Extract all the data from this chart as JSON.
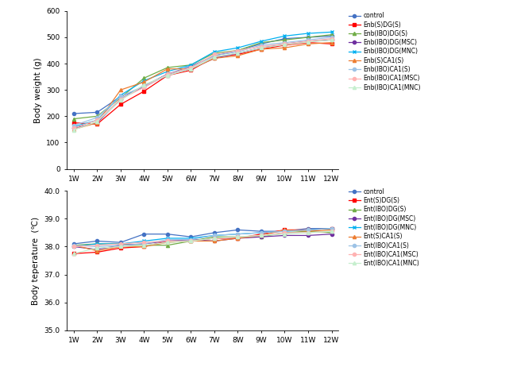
{
  "weeks": [
    "1W",
    "2W",
    "3W",
    "4W",
    "5W",
    "6W",
    "7W",
    "8W",
    "9W",
    "10W",
    "11W",
    "12W"
  ],
  "top_legend_labels": [
    "control",
    "Enb(S)DG(S)",
    "Enb(IBO)DG(S)",
    "Enb(IBO)DG(MSC)",
    "Enb(IBO)DG(MNC)",
    "Enb(S)CA1(S)",
    "Enb(IBO)CA1(S)",
    "Enb(IBO)CA1(MSC)",
    "Enb(IBO)CA1(MNC)"
  ],
  "bot_legend_labels": [
    "control",
    "Ent(S)DG(S)",
    "Ent(IBO)DG(S)",
    "Ent(IBO)DG(MSC)",
    "Ent(IBO)DG(MNC)",
    "Ent(S)CA1(S)",
    "Ent(IBO)CA1(S)",
    "Ent(IBO)CA1(MSC)",
    "Ent(IBO)CA1(MNC)"
  ],
  "series_colors": [
    "#4472C4",
    "#FF0000",
    "#70AD47",
    "#7030A0",
    "#00B0F0",
    "#ED7D31",
    "#9DC3E6",
    "#FFB3B3",
    "#C6EFCE"
  ],
  "series_markers": [
    "o",
    "s",
    "^",
    "o",
    "x",
    "^",
    "o",
    "o",
    "^"
  ],
  "weight_data": [
    [
      210,
      215,
      275,
      310,
      360,
      390,
      430,
      450,
      475,
      495,
      500,
      505
    ],
    [
      175,
      170,
      245,
      295,
      355,
      375,
      425,
      435,
      455,
      470,
      480,
      475
    ],
    [
      190,
      200,
      270,
      345,
      385,
      395,
      440,
      450,
      480,
      490,
      500,
      510
    ],
    [
      155,
      175,
      265,
      315,
      360,
      380,
      420,
      440,
      460,
      475,
      485,
      490
    ],
    [
      160,
      185,
      280,
      335,
      370,
      395,
      445,
      460,
      485,
      505,
      515,
      520
    ],
    [
      150,
      175,
      300,
      330,
      380,
      380,
      420,
      430,
      455,
      460,
      475,
      480
    ],
    [
      165,
      195,
      275,
      315,
      355,
      385,
      430,
      445,
      470,
      480,
      490,
      500
    ],
    [
      155,
      185,
      265,
      310,
      360,
      385,
      435,
      450,
      465,
      475,
      485,
      495
    ],
    [
      148,
      180,
      260,
      320,
      355,
      380,
      425,
      440,
      460,
      472,
      482,
      490
    ]
  ],
  "temp_data": [
    [
      38.1,
      38.2,
      38.15,
      38.45,
      38.45,
      38.35,
      38.5,
      38.6,
      38.55,
      38.55,
      38.65,
      38.65
    ],
    [
      37.75,
      37.8,
      37.95,
      38.0,
      38.2,
      38.2,
      38.3,
      38.3,
      38.45,
      38.6,
      38.6,
      38.65
    ],
    [
      38.05,
      38.1,
      38.1,
      38.05,
      38.05,
      38.2,
      38.35,
      38.35,
      38.35,
      38.5,
      38.55,
      38.5
    ],
    [
      38.0,
      37.9,
      38.05,
      38.1,
      38.2,
      38.25,
      38.2,
      38.3,
      38.35,
      38.4,
      38.4,
      38.45
    ],
    [
      38.0,
      38.1,
      38.1,
      38.2,
      38.3,
      38.3,
      38.4,
      38.45,
      38.5,
      38.55,
      38.6,
      38.65
    ],
    [
      38.05,
      37.85,
      38.0,
      38.0,
      38.15,
      38.2,
      38.2,
      38.3,
      38.4,
      38.6,
      38.55,
      38.6
    ],
    [
      38.05,
      38.0,
      38.05,
      38.1,
      38.25,
      38.25,
      38.4,
      38.45,
      38.5,
      38.55,
      38.6,
      38.65
    ],
    [
      38.0,
      38.05,
      38.1,
      38.15,
      38.2,
      38.2,
      38.3,
      38.35,
      38.4,
      38.5,
      38.5,
      38.55
    ],
    [
      37.75,
      37.95,
      38.0,
      38.05,
      38.15,
      38.2,
      38.3,
      38.35,
      38.4,
      38.45,
      38.5,
      38.55
    ]
  ],
  "weight_ylim": [
    0,
    600
  ],
  "weight_yticks": [
    0,
    100,
    200,
    300,
    400,
    500,
    600
  ],
  "temp_ylim": [
    35.0,
    40.0
  ],
  "temp_yticks": [
    35.0,
    36.0,
    37.0,
    38.0,
    39.0,
    40.0
  ],
  "ylabel_weight": "Body weight (g)",
  "ylabel_temp": "Body teperature  (℃)"
}
